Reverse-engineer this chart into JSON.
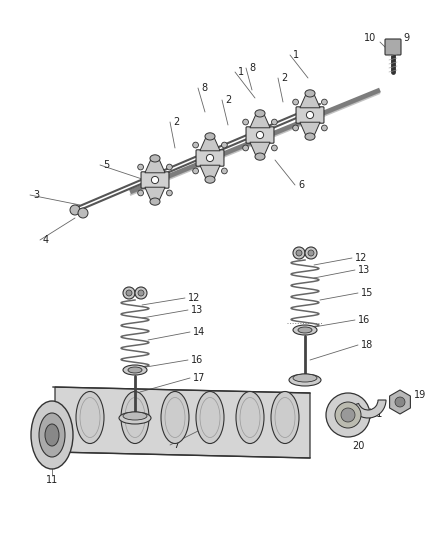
{
  "bg_color": "#ffffff",
  "fig_width": 4.38,
  "fig_height": 5.33,
  "dpi": 100,
  "line_color": "#444444",
  "text_color": "#222222",
  "part_fill": "#e8e8e8",
  "part_edge": "#333333",
  "part_dark": "#bbbbbb",
  "part_light": "#f0f0f0",
  "label_fontsize": 7.0,
  "leader_lw": 0.6,
  "rocker_shaft_color": "#555555",
  "camshaft_fill": "#d8d8d8",
  "spring_color": "#666666"
}
